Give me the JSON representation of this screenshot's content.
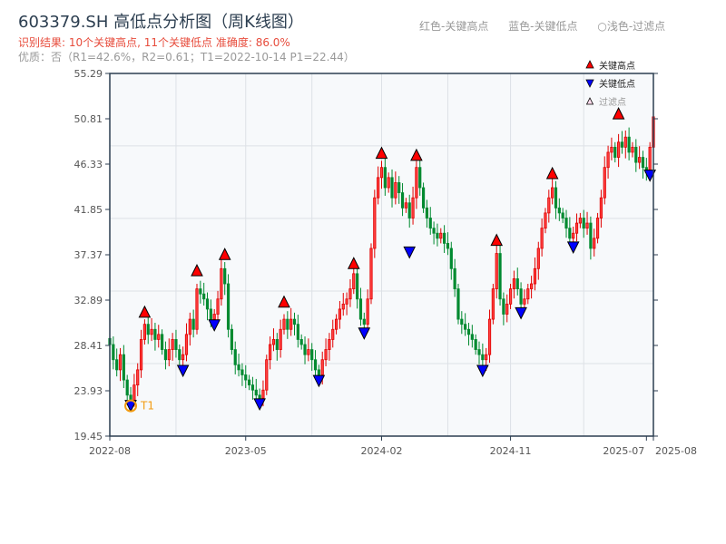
{
  "header": {
    "title": "603379.SH 高低点分析图（周K线图）",
    "result": "识别结果: 10个关键高点, 11个关键低点   准确度: 86.0%",
    "quality": "优质：否（R1=42.6%，R2=0.61；T1=2022-10-14 P1=22.44）",
    "hint_high": "红色-关键高点",
    "hint_low": "蓝色-关键低点",
    "hint_filtered": "○浅色-过滤点"
  },
  "colors": {
    "up": "#e00000",
    "down": "#008a30",
    "high_marker": "#ff0000",
    "low_marker": "#0000ff",
    "t1": "#f39c12",
    "axis": "#2c3e50",
    "grid": "#dde1e6",
    "plot_bg": "#f7f9fb"
  },
  "chart_data": {
    "type": "candlestick",
    "ylim": [
      19.45,
      55.29
    ],
    "y_ticks": [
      19.45,
      23.93,
      28.41,
      32.89,
      37.37,
      41.85,
      46.33,
      50.81,
      55.29
    ],
    "y_tick_labels": [
      "19.45",
      "23.93",
      "28.41",
      "32.89",
      "37.37",
      "41.85",
      "46.33",
      "50.81",
      "55.29"
    ],
    "y_grid": [
      26.62,
      33.79,
      40.96,
      48.13
    ],
    "x_range_weeks": [
      0,
      156
    ],
    "x_ticks": [
      {
        "week": 0,
        "label": "2022-08"
      },
      {
        "week": 39,
        "label": "2023-05"
      },
      {
        "week": 78,
        "label": "2024-02"
      },
      {
        "week": 115,
        "label": "2024-11"
      },
      {
        "week": 154,
        "label": "2025-07"
      },
      {
        "week": 156,
        "label": "2025-08"
      }
    ],
    "x_grid_weeks": [
      19,
      39,
      58,
      78,
      97,
      115,
      136
    ],
    "weekly_close": [
      28.5,
      27,
      26,
      27.5,
      25,
      23.5,
      23,
      24.5,
      26,
      29,
      30.5,
      29.5,
      30,
      29,
      29.5,
      28,
      27,
      28,
      29,
      28,
      27,
      27.5,
      29.5,
      31,
      30,
      34,
      33.5,
      33,
      32,
      31,
      31.5,
      33,
      36,
      34.5,
      30,
      28,
      26.5,
      26,
      25.5,
      25,
      24.5,
      24,
      23.5,
      23.2,
      24,
      27,
      28.5,
      29,
      28,
      30,
      31,
      30,
      31,
      30.5,
      29,
      28.5,
      27.5,
      28,
      27,
      26,
      25.5,
      27,
      28,
      29,
      30,
      31,
      32,
      32.5,
      33,
      34,
      35.5,
      33,
      31,
      30.5,
      33,
      38,
      43,
      45,
      46,
      44,
      45,
      43,
      44.5,
      43.5,
      42,
      42.5,
      41,
      43,
      46,
      44,
      42,
      41,
      40,
      39.5,
      39,
      39.5,
      38.5,
      38,
      36,
      34,
      31,
      30.5,
      30,
      29.5,
      29,
      28,
      27.5,
      27,
      27.5,
      31,
      34,
      37.5,
      33,
      31.5,
      32.5,
      34,
      35,
      34,
      32.5,
      33,
      34,
      34.5,
      36,
      38,
      40,
      41.5,
      43,
      44,
      42,
      41.5,
      41,
      40,
      39,
      39.5,
      40.5,
      41,
      40,
      40.5,
      38,
      39,
      41,
      43,
      46,
      47.5,
      48,
      47,
      48.5,
      48,
      49,
      47.5,
      48,
      46.5,
      47,
      46,
      45.5,
      48,
      51
    ],
    "key_highs": [
      {
        "week": 10,
        "price": 31.2
      },
      {
        "week": 25,
        "price": 35.3
      },
      {
        "week": 33,
        "price": 36.9
      },
      {
        "week": 50,
        "price": 32.2
      },
      {
        "week": 70,
        "price": 36.0
      },
      {
        "week": 78,
        "price": 46.9
      },
      {
        "week": 88,
        "price": 46.7
      },
      {
        "week": 111,
        "price": 38.3
      },
      {
        "week": 127,
        "price": 44.9
      },
      {
        "week": 146,
        "price": 50.8
      }
    ],
    "key_lows": [
      {
        "week": 6,
        "price": 22.44
      },
      {
        "week": 21,
        "price": 25.9
      },
      {
        "week": 30,
        "price": 30.4
      },
      {
        "week": 43,
        "price": 22.6
      },
      {
        "week": 60,
        "price": 24.9
      },
      {
        "week": 73,
        "price": 29.6
      },
      {
        "week": 86,
        "price": 37.6
      },
      {
        "week": 107,
        "price": 25.9
      },
      {
        "week": 118,
        "price": 31.6
      },
      {
        "week": 133,
        "price": 38.1
      },
      {
        "week": 155,
        "price": 45.2
      }
    ],
    "t1": {
      "week": 6,
      "price": 22.44,
      "label": "T1"
    },
    "legend": {
      "position": "top-right",
      "items": [
        {
          "label": "关键高点",
          "marker": "triangle-up-red"
        },
        {
          "label": "关键低点",
          "marker": "triangle-down-blue"
        },
        {
          "label": "过滤点",
          "marker": "triangle-up-hollow"
        }
      ]
    }
  }
}
